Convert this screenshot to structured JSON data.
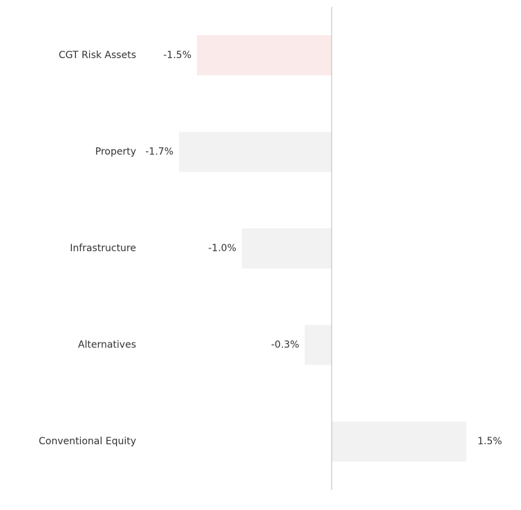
{
  "chart_data": {
    "type": "bar",
    "orientation": "horizontal",
    "categories": [
      "CGT Risk Assets",
      "Property",
      "Infrastructure",
      "Alternatives",
      "Conventional Equity"
    ],
    "values": [
      -1.5,
      -1.7,
      -1.0,
      -0.3,
      1.5
    ],
    "value_labels": [
      "-1.5%",
      "-1.7%",
      "-1.0%",
      "-0.3%",
      "1.5%"
    ],
    "colors": [
      "#fbeaea",
      "#f2f2f2",
      "#f2f2f2",
      "#f2f2f2",
      "#f2f2f2"
    ],
    "xlim": [
      -2,
      2
    ]
  }
}
